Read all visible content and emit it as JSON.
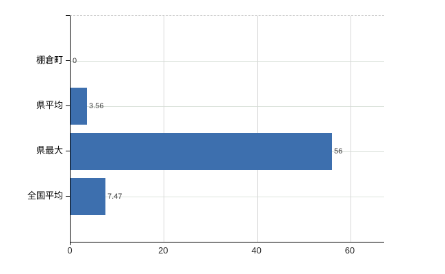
{
  "chart_data": {
    "type": "bar",
    "orientation": "horizontal",
    "title": "",
    "categories": [
      "棚倉町",
      "県平均",
      "県最大",
      "全国平均"
    ],
    "values": [
      0,
      3.56,
      56,
      7.47
    ],
    "value_labels": [
      "0",
      "3.56",
      "56",
      "7.47"
    ],
    "x_ticks": [
      0,
      20,
      40,
      60
    ],
    "x_tick_labels": [
      "0",
      "20",
      "40",
      "60"
    ],
    "xlim": [
      0,
      67.2
    ],
    "grid": true,
    "legend": false,
    "colors": {
      "bar": "#3d6fae",
      "axis": "#000000",
      "h_gridline": "#dce3dc",
      "v_gridline": "#d6d6d6",
      "plot_top_border": "#c9c9c9",
      "value_label": "#3a3a3a",
      "tick_label": "#262626",
      "category_label": "#000000",
      "background": "#ffffff"
    }
  }
}
